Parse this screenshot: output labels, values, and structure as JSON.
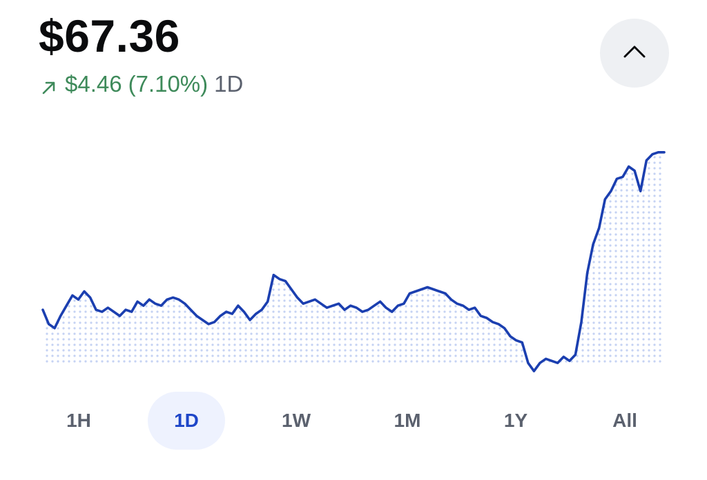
{
  "header": {
    "price": "$67.36",
    "change_amount": "$4.46",
    "change_percent": "(7.10%)",
    "change_period": "1D",
    "change_direction": "up",
    "change_icon": "arrow-up-right-icon"
  },
  "collapse_button": {
    "icon": "chevron-up-icon"
  },
  "colors": {
    "line": "#1b3fb0",
    "dots": "#c5d2f3",
    "positive": "#3e8a5a",
    "muted": "#5b616e",
    "active_range_bg": "#eef2fe",
    "active_range_text": "#1e46c8"
  },
  "ranges": {
    "active": "1D",
    "items": [
      {
        "label": "1H"
      },
      {
        "label": "1D"
      },
      {
        "label": "1W"
      },
      {
        "label": "1M"
      },
      {
        "label": "1Y"
      },
      {
        "label": "All"
      }
    ]
  },
  "chart_data": {
    "type": "line",
    "y": [
      63.7,
      63.35,
      63.25,
      63.55,
      63.8,
      64.05,
      63.95,
      64.15,
      64.0,
      63.7,
      63.65,
      63.75,
      63.65,
      63.55,
      63.7,
      63.65,
      63.9,
      63.8,
      63.95,
      63.85,
      63.8,
      63.95,
      64.0,
      63.95,
      63.85,
      63.7,
      63.55,
      63.45,
      63.35,
      63.4,
      63.55,
      63.65,
      63.6,
      63.8,
      63.65,
      63.45,
      63.6,
      63.7,
      63.9,
      64.55,
      64.45,
      64.4,
      64.2,
      64.0,
      63.85,
      63.9,
      63.95,
      63.85,
      63.75,
      63.8,
      63.85,
      63.7,
      63.8,
      63.75,
      63.65,
      63.7,
      63.8,
      63.9,
      63.75,
      63.65,
      63.8,
      63.85,
      64.1,
      64.15,
      64.2,
      64.25,
      64.2,
      64.15,
      64.1,
      63.95,
      63.85,
      63.8,
      63.7,
      63.75,
      63.55,
      63.5,
      63.4,
      63.35,
      63.25,
      63.05,
      62.95,
      62.9,
      62.4,
      62.2,
      62.4,
      62.5,
      62.45,
      62.4,
      62.55,
      62.45,
      62.6,
      63.4,
      64.6,
      65.3,
      65.7,
      66.4,
      66.6,
      66.9,
      66.95,
      67.2,
      67.1,
      66.6,
      67.35,
      67.5,
      67.55,
      67.55
    ],
    "x_start_label": "",
    "x_end_label": "",
    "ylim": [
      62.0,
      67.9
    ],
    "area_fill": "dotted",
    "grid": false,
    "legend": "none"
  }
}
